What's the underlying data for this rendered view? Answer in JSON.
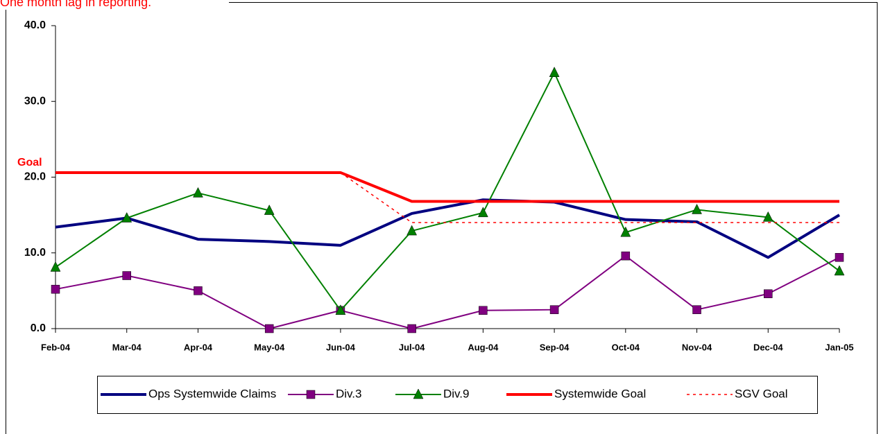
{
  "chart_data": {
    "type": "line",
    "annotation": "One month lag in reporting.",
    "goal_label": "Goal",
    "categories": [
      "Feb-04",
      "Mar-04",
      "Apr-04",
      "May-04",
      "Jun-04",
      "Jul-04",
      "Aug-04",
      "Sep-04",
      "Oct-04",
      "Nov-04",
      "Dec-04",
      "Jan-05"
    ],
    "series": [
      {
        "name": "Ops Systemwide Claims",
        "color": "#000080",
        "width": 4,
        "marker": "none",
        "dash": false,
        "values": [
          13.4,
          14.6,
          11.8,
          11.5,
          11.0,
          15.2,
          17.0,
          16.7,
          14.4,
          14.1,
          9.4,
          15.0
        ]
      },
      {
        "name": "Div.3",
        "color": "#800080",
        "width": 2,
        "marker": "square",
        "dash": false,
        "values": [
          5.2,
          7.0,
          5.0,
          0.0,
          2.4,
          0.0,
          2.4,
          2.5,
          9.6,
          2.5,
          4.6,
          9.4
        ]
      },
      {
        "name": "Div.9",
        "color": "#008000",
        "width": 2,
        "marker": "triangle",
        "dash": false,
        "values": [
          8.1,
          14.6,
          17.9,
          15.6,
          2.4,
          12.9,
          15.3,
          33.8,
          12.7,
          15.7,
          14.7,
          7.6
        ]
      },
      {
        "name": "Systemwide Goal",
        "color": "#ff0000",
        "width": 4,
        "marker": "none",
        "dash": false,
        "values": [
          20.6,
          20.6,
          20.6,
          20.6,
          20.6,
          16.8,
          16.8,
          16.8,
          16.8,
          16.8,
          16.8,
          16.8
        ]
      },
      {
        "name": "SGV Goal",
        "color": "#ff0000",
        "width": 1.5,
        "marker": "none",
        "dash": true,
        "values": [
          null,
          null,
          null,
          null,
          20.6,
          14.0,
          14.0,
          14.0,
          14.0,
          14.0,
          14.0,
          14.0
        ]
      }
    ],
    "ylim": [
      0,
      40
    ],
    "yticks": [
      {
        "value": 0,
        "label": "0.0"
      },
      {
        "value": 10,
        "label": "10.0"
      },
      {
        "value": 20,
        "label": "20.0"
      },
      {
        "value": 30,
        "label": "30.0"
      },
      {
        "value": 40,
        "label": "40.0"
      }
    ],
    "grid": false,
    "legend": "bottom"
  }
}
